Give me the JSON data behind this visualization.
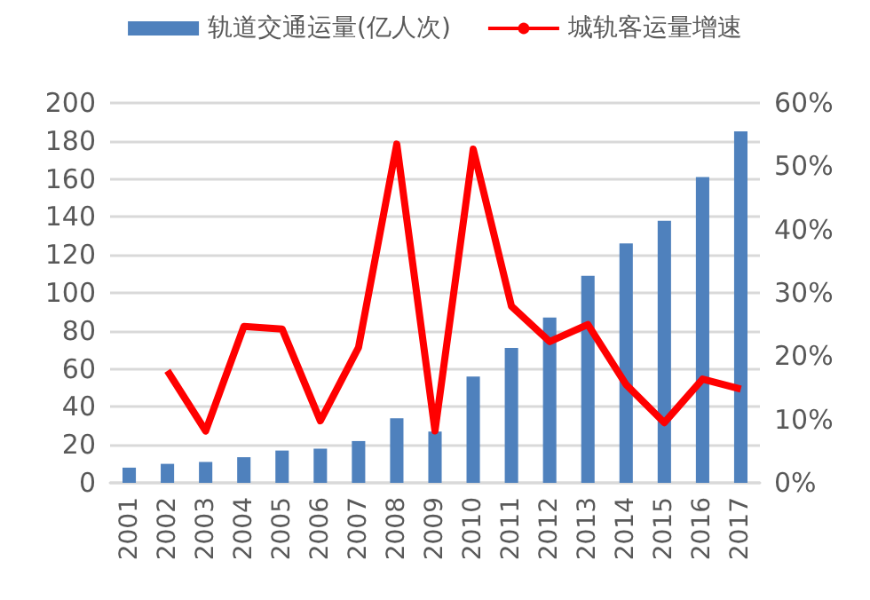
{
  "chart_data": {
    "type": "bar",
    "categories": [
      "2001",
      "2002",
      "2003",
      "2004",
      "2005",
      "2006",
      "2007",
      "2008",
      "2009",
      "2010",
      "2011",
      "2012",
      "2013",
      "2014",
      "2015",
      "2016",
      "2017"
    ],
    "series": [
      {
        "name": "轨道交通运量(亿人次)",
        "color": "#4f81bd",
        "values": [
          8,
          10,
          11,
          13.5,
          17,
          18,
          22,
          34,
          27,
          56,
          71,
          87,
          109,
          126,
          138,
          161,
          185
        ]
      },
      {
        "name": "城轨客运量增速",
        "type": "line",
        "axis": "y2",
        "color": "#ff0000",
        "values": [
          null,
          17.7,
          8.2,
          24.7,
          24.3,
          9.8,
          21.4,
          53.5,
          8.2,
          52.7,
          27.9,
          22.3,
          25,
          15.5,
          9.5,
          16.4,
          14.8
        ]
      }
    ],
    "ylim": [
      0,
      200
    ],
    "yticks": [
      0,
      20,
      40,
      60,
      80,
      100,
      120,
      140,
      160,
      180,
      200
    ],
    "y2lim": [
      0,
      60
    ],
    "y2ticks": [
      {
        "value": 0,
        "label": "0%"
      },
      {
        "value": 10,
        "label": "10%"
      },
      {
        "value": 20,
        "label": "20%"
      },
      {
        "value": 30,
        "label": "30%"
      },
      {
        "value": 40,
        "label": "40%"
      },
      {
        "value": 50,
        "label": "50%"
      },
      {
        "value": 60,
        "label": "60%"
      }
    ],
    "grid": "y",
    "legend": "top",
    "marker": "none"
  }
}
